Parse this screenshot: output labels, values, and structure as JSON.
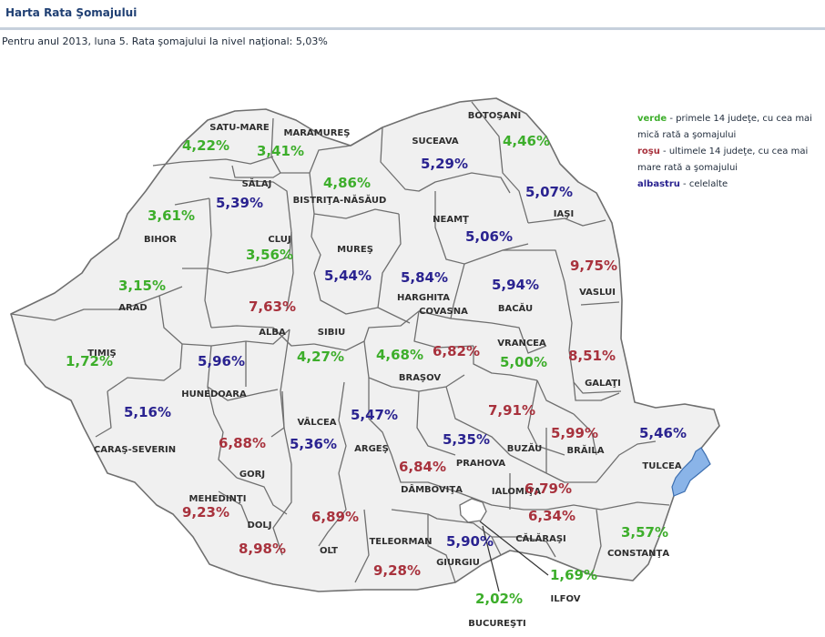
{
  "title": "Harta Rata Şomajului",
  "subtitle": "Pentru anul 2013, luna 5. Rata şomajului la nivel naţional: 5,03%",
  "colors": {
    "verde": "#3dae2b",
    "rosu": "#a8323d",
    "albastru": "#2a2390",
    "county_fill": "#f0f0f0",
    "border": "#6f6f6f",
    "water": "#8ab4e8"
  },
  "legend": [
    {
      "key": "verde",
      "class": "verde",
      "text": " - primele 14 judeţe, cu cea mai mică rată a şomajului"
    },
    {
      "key": "roşu",
      "class": "rosu",
      "text": " - ultimele 14 judeţe, cu cea mai mare rată a şomajului"
    },
    {
      "key": "albastru",
      "class": "albastru",
      "text": " - celelalte"
    }
  ],
  "counties": [
    {
      "id": "satu-mare",
      "name": "SATU-MARE",
      "value": "4,22%",
      "class": "verde"
    },
    {
      "id": "maramures",
      "name": "MARAMUREŞ",
      "value": "3,41%",
      "class": "verde"
    },
    {
      "id": "botosani",
      "name": "BOTOŞANI",
      "value": "4,46%",
      "class": "verde"
    },
    {
      "id": "suceava",
      "name": "SUCEAVA",
      "value": "5,29%",
      "class": "albastru"
    },
    {
      "id": "salaj",
      "name": "SĂLAJ",
      "value": "5,39%",
      "class": "albastru"
    },
    {
      "id": "bistrita-nasaud",
      "name": "BISTRIŢA-NĂSĂUD",
      "value": "4,86%",
      "class": "verde"
    },
    {
      "id": "iasi",
      "name": "IAŞI",
      "value": "5,07%",
      "class": "albastru"
    },
    {
      "id": "bihor",
      "name": "BIHOR",
      "value": "3,61%",
      "class": "verde"
    },
    {
      "id": "cluj",
      "name": "CLUJ",
      "value": "3,56%",
      "class": "verde"
    },
    {
      "id": "neamt",
      "name": "NEAMŢ",
      "value": "5,06%",
      "class": "albastru"
    },
    {
      "id": "mures",
      "name": "MUREŞ",
      "value": "5,44%",
      "class": "albastru"
    },
    {
      "id": "vaslui",
      "name": "VASLUI",
      "value": "9,75%",
      "class": "rosu"
    },
    {
      "id": "arad",
      "name": "ARAD",
      "value": "3,15%",
      "class": "verde"
    },
    {
      "id": "harghita",
      "name": "HARGHITA",
      "value": "5,84%",
      "class": "albastru"
    },
    {
      "id": "bacau",
      "name": "BACĂU",
      "value": "5,94%",
      "class": "albastru"
    },
    {
      "id": "alba",
      "name": "ALBA",
      "value": "7,63%",
      "class": "rosu"
    },
    {
      "id": "covasna",
      "name": "COVASNA",
      "value": "6,82%",
      "class": "rosu"
    },
    {
      "id": "sibiu",
      "name": "SIBIU",
      "value": "4,27%",
      "class": "verde"
    },
    {
      "id": "timis",
      "name": "TIMIŞ",
      "value": "1,72%",
      "class": "verde"
    },
    {
      "id": "vrancea",
      "name": "VRANCEA",
      "value": "5,00%",
      "class": "verde"
    },
    {
      "id": "galati",
      "name": "GALAŢI",
      "value": "8,51%",
      "class": "rosu"
    },
    {
      "id": "hunedoara",
      "name": "HUNEDOARA",
      "value": "5,96%",
      "class": "albastru"
    },
    {
      "id": "brasov",
      "name": "BRAŞOV",
      "value": "4,68%",
      "class": "verde"
    },
    {
      "id": "caras-severin",
      "name": "CARAŞ-SEVERIN",
      "value": "5,16%",
      "class": "albastru"
    },
    {
      "id": "valcea",
      "name": "VÂLCEA",
      "value": "5,36%",
      "class": "albastru"
    },
    {
      "id": "arges",
      "name": "ARGEŞ",
      "value": "5,47%",
      "class": "albastru"
    },
    {
      "id": "buzau",
      "name": "BUZĂU",
      "value": "7,91%",
      "class": "rosu"
    },
    {
      "id": "tulcea",
      "name": "TULCEA",
      "value": "5,46%",
      "class": "albastru"
    },
    {
      "id": "braila",
      "name": "BRĂILA",
      "value": "5,99%",
      "class": "rosu"
    },
    {
      "id": "prahova",
      "name": "PRAHOVA",
      "value": "5,35%",
      "class": "albastru"
    },
    {
      "id": "gorj",
      "name": "GORJ",
      "value": "6,88%",
      "class": "rosu"
    },
    {
      "id": "dambovita",
      "name": "DÂMBOVIŢA",
      "value": "6,84%",
      "class": "rosu"
    },
    {
      "id": "ialomita",
      "name": "IALOMIŢA",
      "value": "6,79%",
      "class": "rosu"
    },
    {
      "id": "mehedinti",
      "name": "MEHEDINŢI",
      "value": "9,23%",
      "class": "rosu"
    },
    {
      "id": "dolj",
      "name": "DOLJ",
      "value": "8,98%",
      "class": "rosu"
    },
    {
      "id": "olt",
      "name": "OLT",
      "value": "6,89%",
      "class": "rosu"
    },
    {
      "id": "teleorman",
      "name": "TELEORMAN",
      "value": "9,28%",
      "class": "rosu"
    },
    {
      "id": "giurgiu",
      "name": "GIURGIU",
      "value": "5,90%",
      "class": "albastru"
    },
    {
      "id": "calarasi",
      "name": "CĂLĂRAŞI",
      "value": "6,34%",
      "class": "rosu"
    },
    {
      "id": "constanta",
      "name": "CONSTANŢA",
      "value": "3,57%",
      "class": "verde"
    },
    {
      "id": "ilfov",
      "name": "ILFOV",
      "value": "1,69%",
      "class": "verde"
    },
    {
      "id": "bucuresti",
      "name": "BUCUREŞTI",
      "value": "2,02%",
      "class": "verde"
    }
  ]
}
